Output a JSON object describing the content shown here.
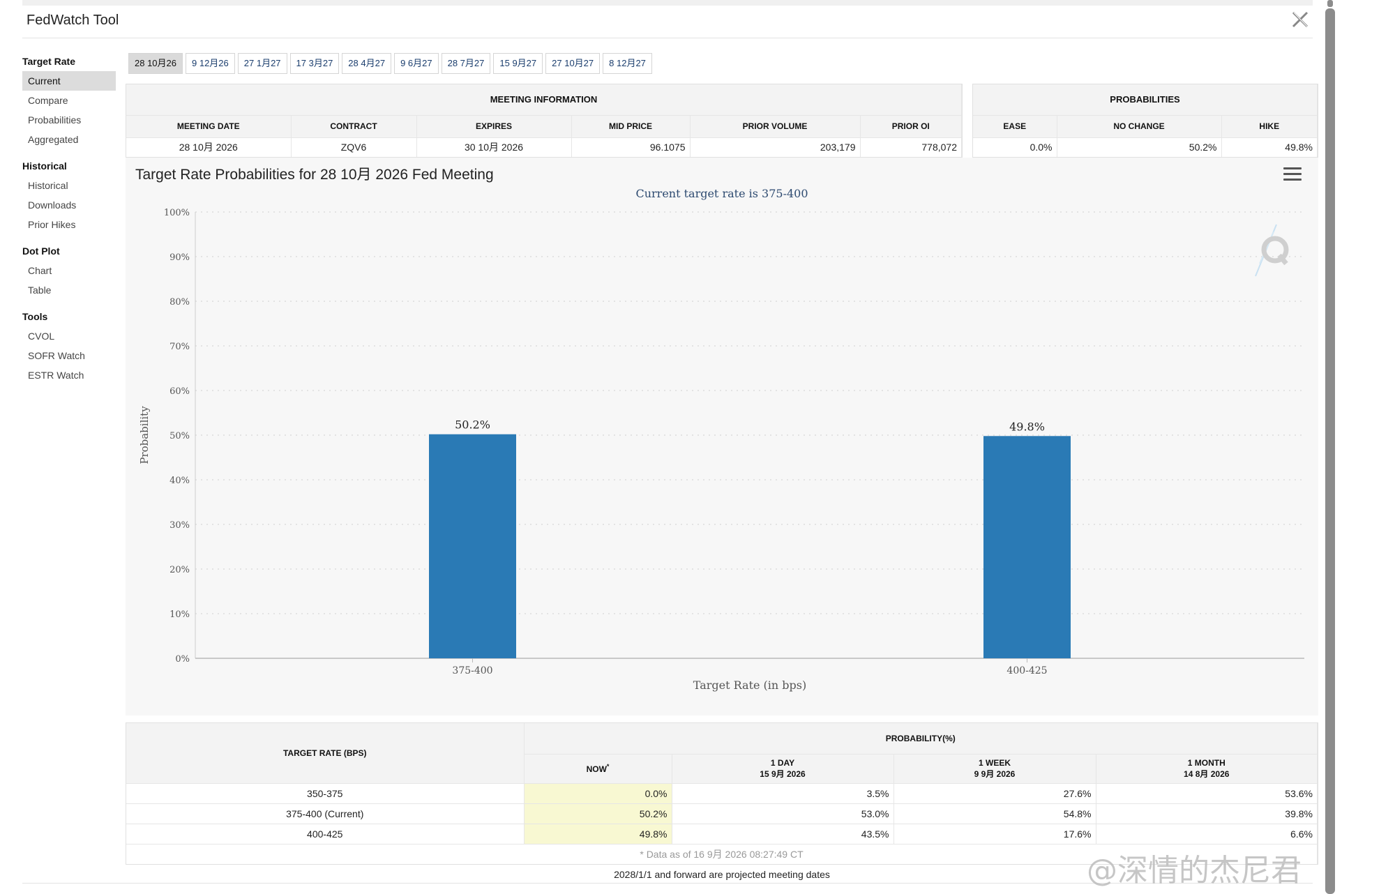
{
  "app": {
    "title": "FedWatch Tool"
  },
  "sidebar": {
    "groups": [
      {
        "heading": "Target Rate",
        "items": [
          "Current",
          "Compare",
          "Probabilities",
          "Aggregated"
        ]
      },
      {
        "heading": "Historical",
        "items": [
          "Historical",
          "Downloads",
          "Prior Hikes"
        ]
      },
      {
        "heading": "Dot Plot",
        "items": [
          "Chart",
          "Table"
        ]
      },
      {
        "heading": "Tools",
        "items": [
          "CVOL",
          "SOFR Watch",
          "ESTR Watch"
        ]
      }
    ],
    "active_item": "Current"
  },
  "tabs": [
    "28 10月26",
    "9 12月26",
    "27 1月27",
    "17 3月27",
    "28 4月27",
    "9 6月27",
    "28 7月27",
    "15 9月27",
    "27 10月27",
    "8 12月27"
  ],
  "meeting_info": {
    "heading": "MEETING INFORMATION",
    "columns": [
      "MEETING DATE",
      "CONTRACT",
      "EXPIRES",
      "MID PRICE",
      "PRIOR VOLUME",
      "PRIOR OI"
    ],
    "row": [
      "28 10月 2026",
      "ZQV6",
      "30 10月 2026",
      "96.1075",
      "203,179",
      "778,072"
    ]
  },
  "probabilities_box": {
    "heading": "PROBABILITIES",
    "columns": [
      "EASE",
      "NO CHANGE",
      "HIKE"
    ],
    "row": [
      "0.0%",
      "50.2%",
      "49.8%"
    ]
  },
  "chart": {
    "title": "Target Rate Probabilities for 28 10月 2026 Fed Meeting",
    "subtitle": "Current target rate is 375-400"
  },
  "chart_data": {
    "type": "bar",
    "title": "Target Rate Probabilities for 28 10月 2026 Fed Meeting",
    "subtitle": "Current target rate is 375-400",
    "categories": [
      "375-400",
      "400-425"
    ],
    "values": [
      50.2,
      49.8
    ],
    "data_labels": [
      "50.2%",
      "49.8%"
    ],
    "xlabel": "Target Rate (in bps)",
    "ylabel": "Probability",
    "ylim": [
      0,
      100
    ],
    "yticks": [
      "0%",
      "10%",
      "20%",
      "30%",
      "40%",
      "50%",
      "60%",
      "70%",
      "80%",
      "90%",
      "100%"
    ],
    "grid": true,
    "bar_color": "#2a7ab5"
  },
  "prob_table": {
    "col_target": "TARGET RATE (BPS)",
    "col_prob": "PROBABILITY(%)",
    "sub_now": "NOW",
    "sub_now_mark": "*",
    "sub_day": "1 DAY",
    "sub_day_date": "15 9月 2026",
    "sub_week": "1 WEEK",
    "sub_week_date": "9 9月 2026",
    "sub_month": "1 MONTH",
    "sub_month_date": "14 8月 2026",
    "rows": [
      [
        "350-375",
        "0.0%",
        "3.5%",
        "27.6%",
        "53.6%"
      ],
      [
        "375-400 (Current)",
        "50.2%",
        "53.0%",
        "54.8%",
        "39.8%"
      ],
      [
        "400-425",
        "49.8%",
        "43.5%",
        "17.6%",
        "6.6%"
      ]
    ],
    "footnote": "* Data as of 16 9月 2026 08:27:49 CT"
  },
  "projection_note": "2028/1/1 and forward are projected meeting dates",
  "watermark": "@深情的杰尼君",
  "colors": {
    "accent_bar": "#2a7ab5",
    "now_highlight": "#f8f8d2",
    "active_nav": "#dcdcdc"
  }
}
